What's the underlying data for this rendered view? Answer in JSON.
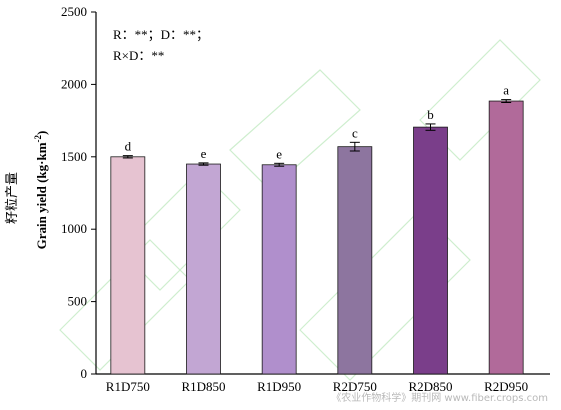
{
  "chart_data": {
    "type": "bar",
    "categories": [
      "R1D750",
      "R1D850",
      "R1D950",
      "R2D750",
      "R2D850",
      "R2D950"
    ],
    "values": [
      1500,
      1450,
      1445,
      1570,
      1705,
      1885
    ],
    "errors": [
      8,
      8,
      10,
      30,
      22,
      10
    ],
    "significance": [
      "d",
      "e",
      "e",
      "c",
      "b",
      "a"
    ],
    "bar_colors": [
      "#e6c3d1",
      "#c2a6d3",
      "#b08fcc",
      "#8d759f",
      "#7a3e8a",
      "#b16a9a"
    ],
    "ylabel": "Grain yield (kg·km",
    "ylabel_sup": "-2",
    "ylabel_close": ")",
    "ylabel_zh": "籽粒产量",
    "ylim": [
      0,
      2500
    ],
    "yticks": [
      0,
      500,
      1000,
      1500,
      2000,
      2500
    ],
    "annotation_line1": "R：**；D：**；",
    "annotation_line2": "R×D：**",
    "grid": false,
    "legend": "none"
  },
  "watermark": {
    "text": "《农业作物科学》期刊网 www.fiber.crops.com"
  }
}
